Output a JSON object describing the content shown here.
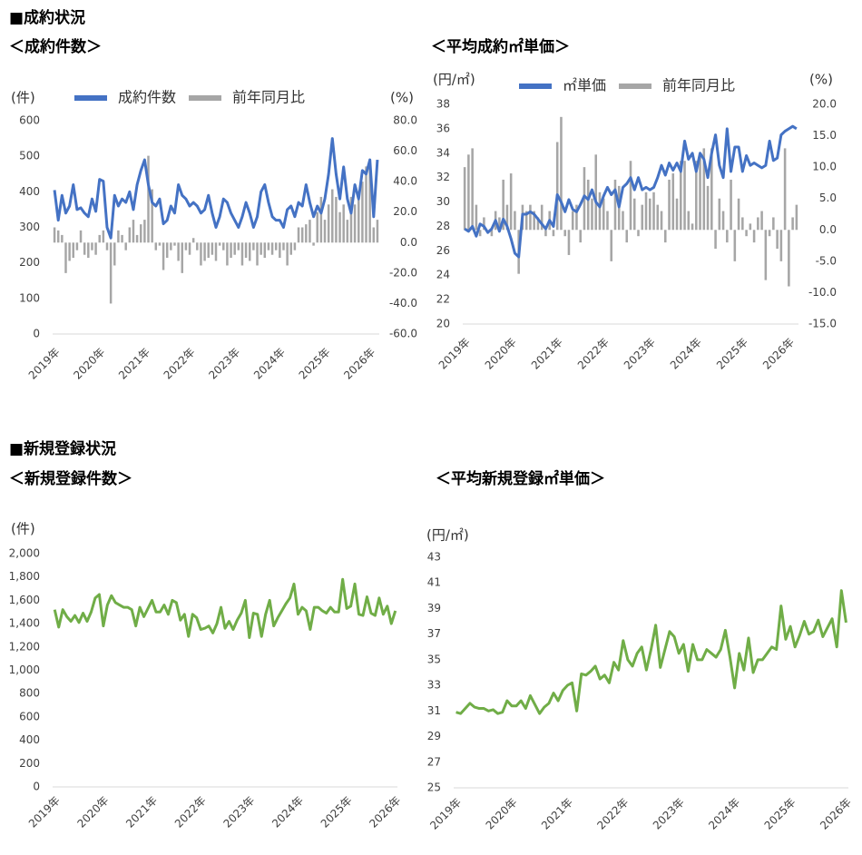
{
  "sections": [
    "■成約状況",
    "■新規登録状況"
  ],
  "chart_data": [
    {
      "type": "bar_line",
      "title": "＜成約件数＞",
      "y_label": "(件)",
      "y2_label": "(%)",
      "categories": [
        "2019年",
        null,
        null,
        null,
        null,
        null,
        null,
        null,
        null,
        null,
        null,
        null,
        "2020年",
        null,
        null,
        null,
        null,
        null,
        null,
        null,
        null,
        null,
        null,
        null,
        "2021年",
        null,
        null,
        null,
        null,
        null,
        null,
        null,
        null,
        null,
        null,
        null,
        "2022年",
        null,
        null,
        null,
        null,
        null,
        null,
        null,
        null,
        null,
        null,
        null,
        "2023年",
        null,
        null,
        null,
        null,
        null,
        null,
        null,
        null,
        null,
        null,
        null,
        "2024年",
        null,
        null,
        null,
        null,
        null,
        null,
        null,
        null,
        null,
        null,
        null,
        "2025年",
        null,
        null,
        null,
        null,
        null,
        null,
        null,
        null,
        null,
        null,
        null,
        "2026年",
        null,
        null
      ],
      "series": [
        {
          "name": "成約件数",
          "type": "line",
          "color": "#4472c4",
          "values": [
            405,
            320,
            390,
            340,
            360,
            420,
            350,
            355,
            340,
            330,
            380,
            345,
            435,
            430,
            300,
            270,
            390,
            360,
            380,
            370,
            400,
            350,
            420,
            460,
            490,
            420,
            370,
            360,
            380,
            310,
            320,
            360,
            340,
            420,
            390,
            380,
            360,
            370,
            360,
            340,
            350,
            390,
            340,
            300,
            330,
            380,
            370,
            340,
            320,
            300,
            330,
            370,
            340,
            300,
            330,
            400,
            420,
            370,
            330,
            320,
            320,
            300,
            350,
            360,
            330,
            370,
            360,
            420,
            370,
            330,
            360,
            340,
            380,
            450,
            550,
            450,
            380,
            470,
            380,
            340,
            420,
            380,
            460,
            450,
            490,
            330,
            490
          ]
        },
        {
          "name": "前年同月比",
          "type": "bar",
          "axis": "y2",
          "color": "#a6a6a6",
          "values": [
            10,
            8,
            5,
            -20,
            -12,
            -10,
            -5,
            8,
            -8,
            -10,
            -5,
            -8,
            5,
            8,
            -5,
            -40,
            -15,
            8,
            5,
            -5,
            10,
            15,
            5,
            12,
            15,
            57,
            35,
            -5,
            -2,
            -18,
            -10,
            -5,
            -2,
            -12,
            -20,
            -5,
            -8,
            3,
            -5,
            -15,
            -12,
            -10,
            -8,
            -12,
            -2,
            -5,
            -15,
            -10,
            -8,
            -5,
            -15,
            -10,
            -12,
            -5,
            -15,
            -8,
            -10,
            -5,
            -8,
            -5,
            -10,
            -5,
            -15,
            -8,
            -5,
            10,
            10,
            12,
            15,
            -2,
            20,
            30,
            15,
            25,
            35,
            30,
            20,
            25,
            15,
            30,
            25,
            30,
            40,
            50,
            55,
            10,
            15
          ]
        }
      ],
      "ylim": [
        0,
        600
      ],
      "yticks": [
        0,
        100,
        200,
        300,
        400,
        500,
        600
      ],
      "y2lim": [
        -60,
        80
      ],
      "y2ticks": [
        {
          "value": -60,
          "label": "-60.0"
        },
        {
          "value": -40,
          "label": "-40.0"
        },
        {
          "value": -20,
          "label": "-20.0"
        },
        {
          "value": 0,
          "label": "0.0"
        },
        {
          "value": 20,
          "label": "20.0"
        },
        {
          "value": 40,
          "label": "40.0"
        },
        {
          "value": 60,
          "label": "60.0"
        },
        {
          "value": 80,
          "label": "80.0"
        }
      ],
      "y2_negative_color": "#ff0000",
      "grid": false
    },
    {
      "type": "bar_line",
      "title": "＜平均成約㎡単価＞",
      "y_label": "(円/㎡)",
      "y2_label": "(%)",
      "categories": [
        "2019年",
        null,
        null,
        null,
        null,
        null,
        null,
        null,
        null,
        null,
        null,
        null,
        "2020年",
        null,
        null,
        null,
        null,
        null,
        null,
        null,
        null,
        null,
        null,
        null,
        "2021年",
        null,
        null,
        null,
        null,
        null,
        null,
        null,
        null,
        null,
        null,
        null,
        "2022年",
        null,
        null,
        null,
        null,
        null,
        null,
        null,
        null,
        null,
        null,
        null,
        "2023年",
        null,
        null,
        null,
        null,
        null,
        null,
        null,
        null,
        null,
        null,
        null,
        "2024年",
        null,
        null,
        null,
        null,
        null,
        null,
        null,
        null,
        null,
        null,
        null,
        "2025年",
        null,
        null,
        null,
        null,
        null,
        null,
        null,
        null,
        null,
        null,
        null,
        "2026年",
        null,
        null
      ],
      "series": [
        {
          "name": "㎡単価",
          "type": "line",
          "color": "#4472c4",
          "values": [
            27.8,
            27.6,
            28.0,
            27.2,
            28.2,
            28.0,
            27.5,
            27.8,
            28.5,
            27.6,
            28.6,
            28.0,
            27.0,
            25.8,
            25.5,
            29.0,
            29.0,
            29.2,
            29.0,
            28.6,
            28.2,
            27.8,
            28.5,
            28.0,
            30.6,
            30.0,
            29.2,
            30.2,
            29.4,
            29.2,
            29.8,
            30.5,
            30.2,
            31.0,
            30.0,
            29.6,
            30.5,
            31.2,
            30.6,
            31.0,
            29.6,
            31.2,
            31.5,
            32.0,
            31.0,
            32.0,
            31.0,
            31.2,
            31.0,
            31.2,
            32.0,
            33.0,
            32.2,
            33.2,
            32.6,
            33.2,
            32.5,
            35.0,
            33.5,
            34.0,
            32.5,
            34.0,
            33.5,
            32.0,
            34.0,
            35.5,
            33.0,
            32.0,
            36.0,
            32.5,
            34.5,
            34.5,
            32.5,
            33.8,
            33.0,
            33.2,
            33.0,
            32.8,
            33.0,
            35.0,
            33.4,
            33.6,
            35.5,
            35.8,
            36.0,
            36.2,
            36.0
          ]
        },
        {
          "name": "前年同月比",
          "type": "bar",
          "axis": "y2",
          "color": "#a6a6a6",
          "values": [
            10,
            12,
            13,
            4,
            -1,
            2,
            0,
            -1,
            3,
            2,
            8,
            4,
            9,
            3,
            -7,
            4,
            3,
            4,
            3,
            2,
            4,
            -1,
            3,
            -1,
            14,
            18,
            -1,
            -4,
            3,
            4,
            -2,
            10,
            8,
            5,
            12,
            6,
            5,
            3,
            -5,
            8,
            7,
            3,
            -2,
            11,
            5,
            -1,
            4,
            6,
            5,
            6,
            4,
            3,
            -2,
            8,
            9,
            5,
            11,
            11,
            3,
            1,
            11,
            12,
            13,
            7,
            13,
            -3,
            5,
            3,
            -2,
            8,
            -5,
            5,
            2,
            -1,
            1,
            -2,
            2,
            3,
            -8,
            -1,
            2,
            -3,
            -5,
            13,
            -9,
            2,
            4
          ]
        }
      ],
      "ylim": [
        20,
        38
      ],
      "yticks": [
        20,
        22,
        24,
        26,
        28,
        30,
        32,
        34,
        36,
        38
      ],
      "y2lim": [
        -15,
        20
      ],
      "y2ticks": [
        {
          "value": -15,
          "label": "-15.0"
        },
        {
          "value": -10,
          "label": "-10.0"
        },
        {
          "value": -5,
          "label": "-5.0"
        },
        {
          "value": 0,
          "label": "0.0"
        },
        {
          "value": 5,
          "label": "5.0"
        },
        {
          "value": 10,
          "label": "10.0"
        },
        {
          "value": 15,
          "label": "15.0"
        },
        {
          "value": 20,
          "label": "20.0"
        }
      ],
      "y2_negative_color": "#ff0000",
      "grid": false
    },
    {
      "type": "line",
      "title": "＜新規登録件数＞",
      "y_label": "(件)",
      "categories": [
        "2019年",
        null,
        null,
        null,
        null,
        null,
        null,
        null,
        null,
        null,
        null,
        null,
        "2020年",
        null,
        null,
        null,
        null,
        null,
        null,
        null,
        null,
        null,
        null,
        null,
        "2021年",
        null,
        null,
        null,
        null,
        null,
        null,
        null,
        null,
        null,
        null,
        null,
        "2022年",
        null,
        null,
        null,
        null,
        null,
        null,
        null,
        null,
        null,
        null,
        null,
        "2023年",
        null,
        null,
        null,
        null,
        null,
        null,
        null,
        null,
        null,
        null,
        null,
        "2024年",
        null,
        null,
        null,
        null,
        null,
        null,
        null,
        null,
        null,
        null,
        null,
        "2025年",
        null,
        null,
        null,
        null,
        null,
        null,
        null,
        null,
        null,
        null,
        null,
        "2026年"
      ],
      "series": [
        {
          "name": null,
          "type": "line",
          "color": "#70ad47",
          "values": [
            1520,
            1370,
            1520,
            1460,
            1420,
            1470,
            1410,
            1490,
            1420,
            1500,
            1620,
            1650,
            1380,
            1560,
            1640,
            1580,
            1560,
            1540,
            1540,
            1520,
            1380,
            1540,
            1460,
            1530,
            1600,
            1500,
            1500,
            1560,
            1480,
            1600,
            1580,
            1430,
            1480,
            1290,
            1480,
            1450,
            1350,
            1360,
            1380,
            1320,
            1400,
            1540,
            1360,
            1420,
            1350,
            1430,
            1490,
            1600,
            1280,
            1490,
            1480,
            1290,
            1480,
            1600,
            1380,
            1450,
            1510,
            1570,
            1620,
            1740,
            1480,
            1540,
            1510,
            1350,
            1540,
            1540,
            1510,
            1490,
            1540,
            1500,
            1500,
            1780,
            1530,
            1550,
            1740,
            1480,
            1470,
            1630,
            1490,
            1470,
            1620,
            1480,
            1550,
            1400,
            1510
          ]
        }
      ],
      "ylim": [
        0,
        2000
      ],
      "yticks": [
        0,
        200,
        400,
        600,
        800,
        {
          "value": 1000,
          "label": "1,000"
        },
        {
          "value": 1200,
          "label": "1,200"
        },
        {
          "value": 1400,
          "label": "1,400"
        },
        {
          "value": 1600,
          "label": "1,600"
        },
        {
          "value": 1800,
          "label": "1,800"
        },
        {
          "value": 2000,
          "label": "2,000"
        }
      ],
      "grid": false
    },
    {
      "type": "line",
      "title": "＜平均新規登録㎡単価＞",
      "y_label": "(円/㎡)",
      "categories": [
        "2019年",
        null,
        null,
        null,
        null,
        null,
        null,
        null,
        null,
        null,
        null,
        null,
        "2020年",
        null,
        null,
        null,
        null,
        null,
        null,
        null,
        null,
        null,
        null,
        null,
        "2021年",
        null,
        null,
        null,
        null,
        null,
        null,
        null,
        null,
        null,
        null,
        null,
        "2022年",
        null,
        null,
        null,
        null,
        null,
        null,
        null,
        null,
        null,
        null,
        null,
        "2023年",
        null,
        null,
        null,
        null,
        null,
        null,
        null,
        null,
        null,
        null,
        null,
        "2024年",
        null,
        null,
        null,
        null,
        null,
        null,
        null,
        null,
        null,
        null,
        null,
        "2025年",
        null,
        null,
        null,
        null,
        null,
        null,
        null,
        null,
        null,
        null,
        null,
        "2026年"
      ],
      "series": [
        {
          "name": null,
          "type": "line",
          "color": "#70ad47",
          "values": [
            30.9,
            30.8,
            31.2,
            31.6,
            31.3,
            31.2,
            31.2,
            31.0,
            31.1,
            30.8,
            30.9,
            31.8,
            31.4,
            31.4,
            31.8,
            31.2,
            32.2,
            31.5,
            30.8,
            31.3,
            31.6,
            32.4,
            31.8,
            32.6,
            33.0,
            33.2,
            31.0,
            33.9,
            33.8,
            34.1,
            34.5,
            33.5,
            33.8,
            33.2,
            34.8,
            34.2,
            36.5,
            35.0,
            34.5,
            35.5,
            36.0,
            34.2,
            35.8,
            37.7,
            34.4,
            35.8,
            37.2,
            36.8,
            35.5,
            36.2,
            34.1,
            36.2,
            35.0,
            35.0,
            35.8,
            35.5,
            35.2,
            35.8,
            37.3,
            35.2,
            32.8,
            35.5,
            34.2,
            36.7,
            34.0,
            35.0,
            35.0,
            35.5,
            36.0,
            35.8,
            39.2,
            36.6,
            37.6,
            36.0,
            36.9,
            38.0,
            37.0,
            37.2,
            38.1,
            36.8,
            37.5,
            38.2,
            36.0,
            40.4,
            37.9
          ]
        }
      ],
      "ylim": [
        25,
        43
      ],
      "yticks": [
        25,
        27,
        29,
        31,
        33,
        35,
        37,
        39,
        41,
        43
      ],
      "grid": false
    }
  ]
}
